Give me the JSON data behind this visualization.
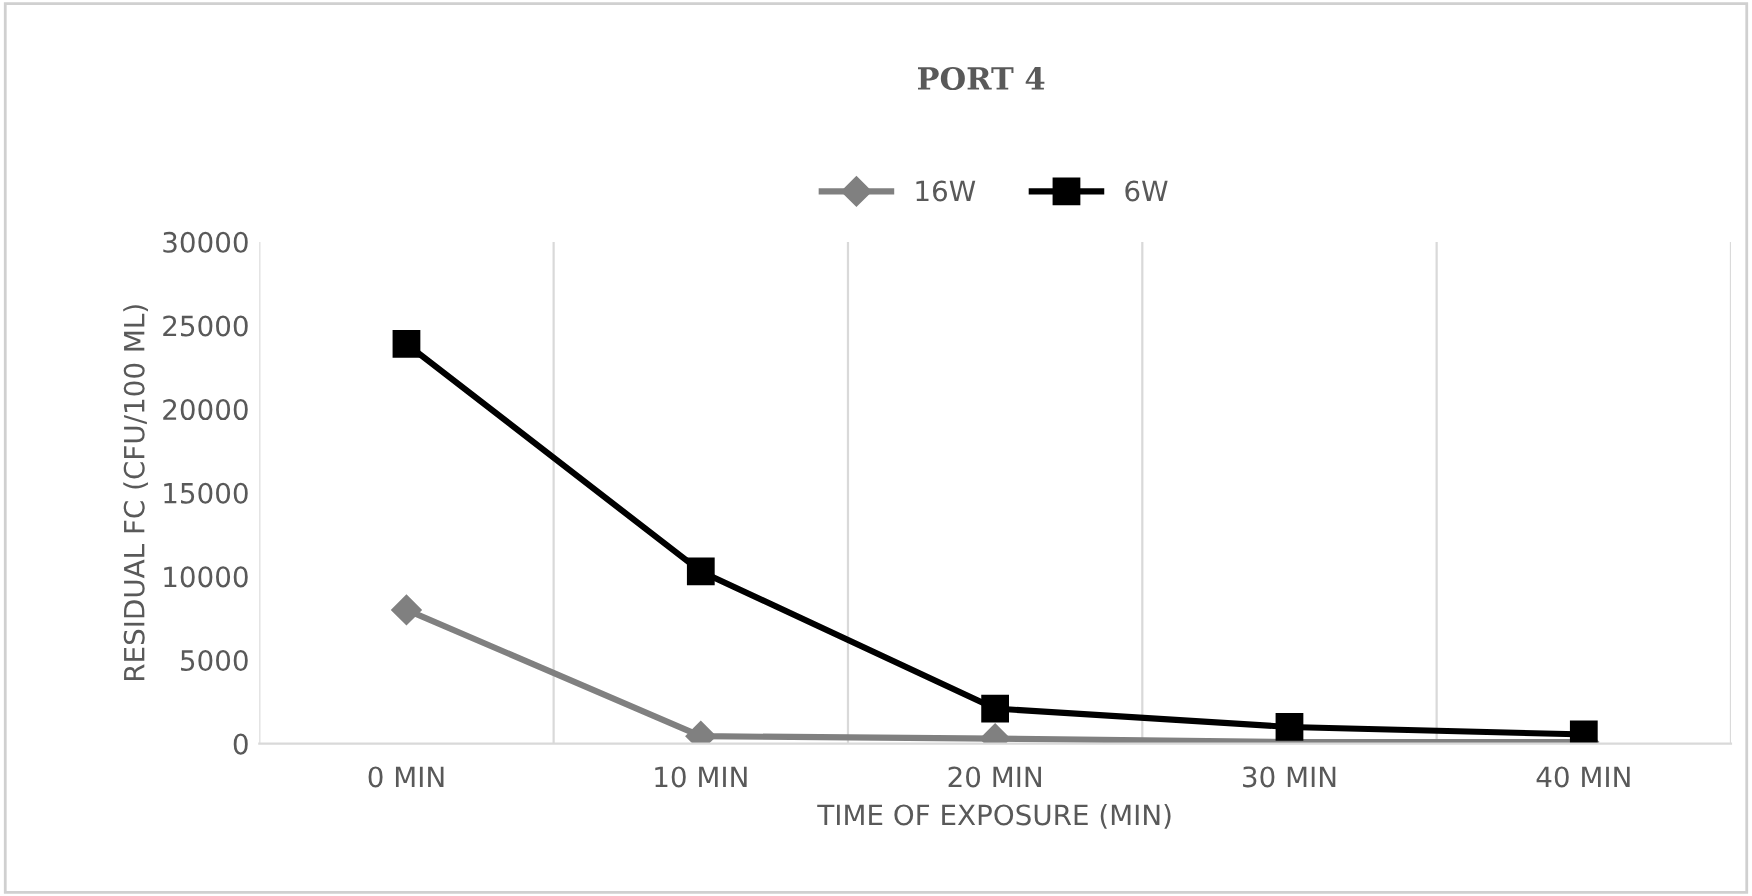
{
  "chart_data": {
    "type": "line",
    "title": "PORT 4",
    "xlabel": "TIME OF EXPOSURE (MIN)",
    "ylabel": "RESIDUAL FC (CFU/100 ML)",
    "categories": [
      "0 MIN",
      "10 MIN",
      "20 MIN",
      "30 MIN",
      "40 MIN"
    ],
    "series": [
      {
        "name": "16W",
        "color": "#808080",
        "marker": "diamond",
        "values": [
          8000,
          450,
          300,
          100,
          100
        ]
      },
      {
        "name": "6W",
        "color": "#000000",
        "marker": "square",
        "values": [
          23900,
          10300,
          2100,
          1000,
          550
        ]
      }
    ],
    "ylim": [
      0,
      30000
    ],
    "yticks": [
      0,
      5000,
      10000,
      15000,
      20000,
      25000,
      30000
    ],
    "grid": "x",
    "legend": "top",
    "line_style": "solid"
  }
}
